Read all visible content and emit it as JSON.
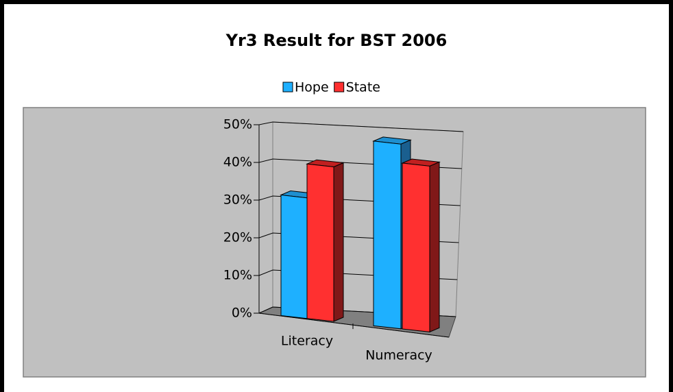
{
  "chart_data": {
    "type": "bar3d",
    "title": "Yr3 Result for BST 2006",
    "categories": [
      "Literacy",
      "Numeracy"
    ],
    "series": [
      {
        "name": "Hope",
        "color": "#1eb0ff",
        "values": [
          32,
          49
        ]
      },
      {
        "name": "State",
        "color": "#ff3030",
        "values": [
          41,
          44
        ]
      }
    ],
    "ylim": [
      0,
      50
    ],
    "yticks": [
      {
        "value": 0,
        "label": "0%"
      },
      {
        "value": 10,
        "label": "10%"
      },
      {
        "value": 20,
        "label": "20%"
      },
      {
        "value": 30,
        "label": "30%"
      },
      {
        "value": 40,
        "label": "40%"
      },
      {
        "value": 50,
        "label": "50%"
      }
    ],
    "grid": true,
    "legend": "top"
  }
}
